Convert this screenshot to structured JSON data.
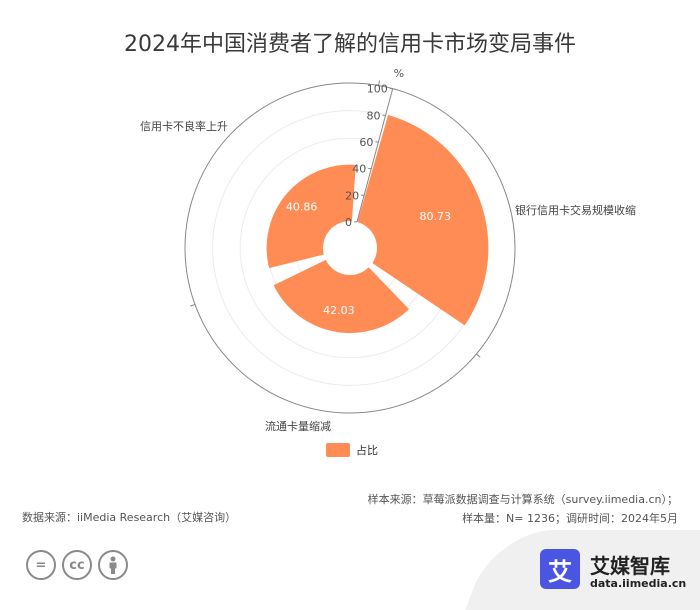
{
  "chart_data": {
    "type": "polar-bar",
    "title": "2024年中国消费者了解的信用卡市场变局事件",
    "categories": [
      "银行信用卡交易规模收缩",
      "流通卡量缩减",
      "信用卡不良率上升"
    ],
    "series": [
      {
        "name": "占比",
        "values": [
          80.73,
          42.03,
          40.86
        ]
      }
    ],
    "radial_axis": {
      "label": "%",
      "range": [
        0,
        100
      ],
      "ticks": [
        0,
        20,
        40,
        60,
        80,
        100
      ]
    },
    "color": "#ff8c55",
    "legend": "bottom"
  },
  "footer": {
    "source_left": "数据来源：iiMedia Research（艾媒咨询）",
    "source_right_1": "样本来源：草莓派数据调查与计算系统（survey.iimedia.cn）；",
    "source_right_2": "样本量：N= 1236；调研时间：2024年5月"
  },
  "brand": {
    "logo_char": "艾",
    "name": "艾媒智库",
    "url": "data.iimedia.cn"
  },
  "cc_icons": [
    "equals-icon",
    "cc-icon",
    "person-icon"
  ]
}
